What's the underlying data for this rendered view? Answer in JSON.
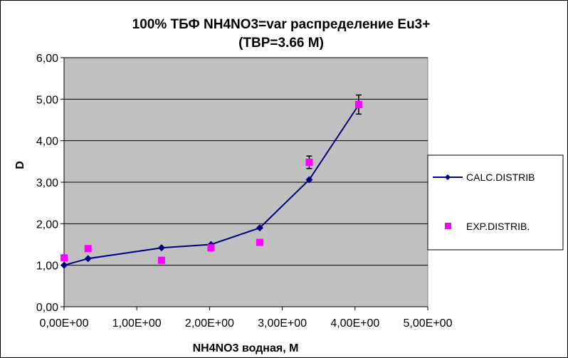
{
  "chart_data": {
    "type": "line",
    "title_lines": [
      "100%  ТБФ  NH4NO3=var распределение Eu3+",
      "(TBP=3.66 M)"
    ],
    "xlabel": "NH4NO3  водная, М",
    "ylabel": "D",
    "xlim": [
      0,
      5
    ],
    "ylim": [
      0,
      6
    ],
    "x_ticks": [
      0,
      1,
      2,
      3,
      4,
      5
    ],
    "x_tick_labels": [
      "0,00E+00",
      "1,00E+00",
      "2,00E+00",
      "3,00E+00",
      "4,00E+00",
      "5,00E+00"
    ],
    "y_ticks": [
      0,
      1,
      2,
      3,
      4,
      5,
      6
    ],
    "y_tick_labels": [
      "0,00",
      "1,00",
      "2,00",
      "3,00",
      "4,00",
      "5,00",
      "6,00"
    ],
    "grid": "horizontal",
    "legend_position": "right",
    "plot_background": "#c0c0c0",
    "series": [
      {
        "name": "CALC.DISTRIB",
        "kind": "line-marker",
        "marker": "diamond",
        "color": "#000080",
        "x": [
          0.0,
          0.33,
          1.34,
          2.02,
          2.69,
          3.37,
          4.05
        ],
        "y": [
          1.0,
          1.16,
          1.42,
          1.5,
          1.9,
          3.06,
          4.86
        ]
      },
      {
        "name": "EXP.DISTRIB.",
        "kind": "marker",
        "marker": "square",
        "color": "#ff00ff",
        "x": [
          0.0,
          0.33,
          1.34,
          2.02,
          2.69,
          3.37,
          4.05
        ],
        "y": [
          1.18,
          1.4,
          1.12,
          1.42,
          1.55,
          3.48,
          4.87
        ],
        "error": [
          0,
          0,
          0,
          0,
          0,
          0.15,
          0.23
        ]
      }
    ]
  }
}
